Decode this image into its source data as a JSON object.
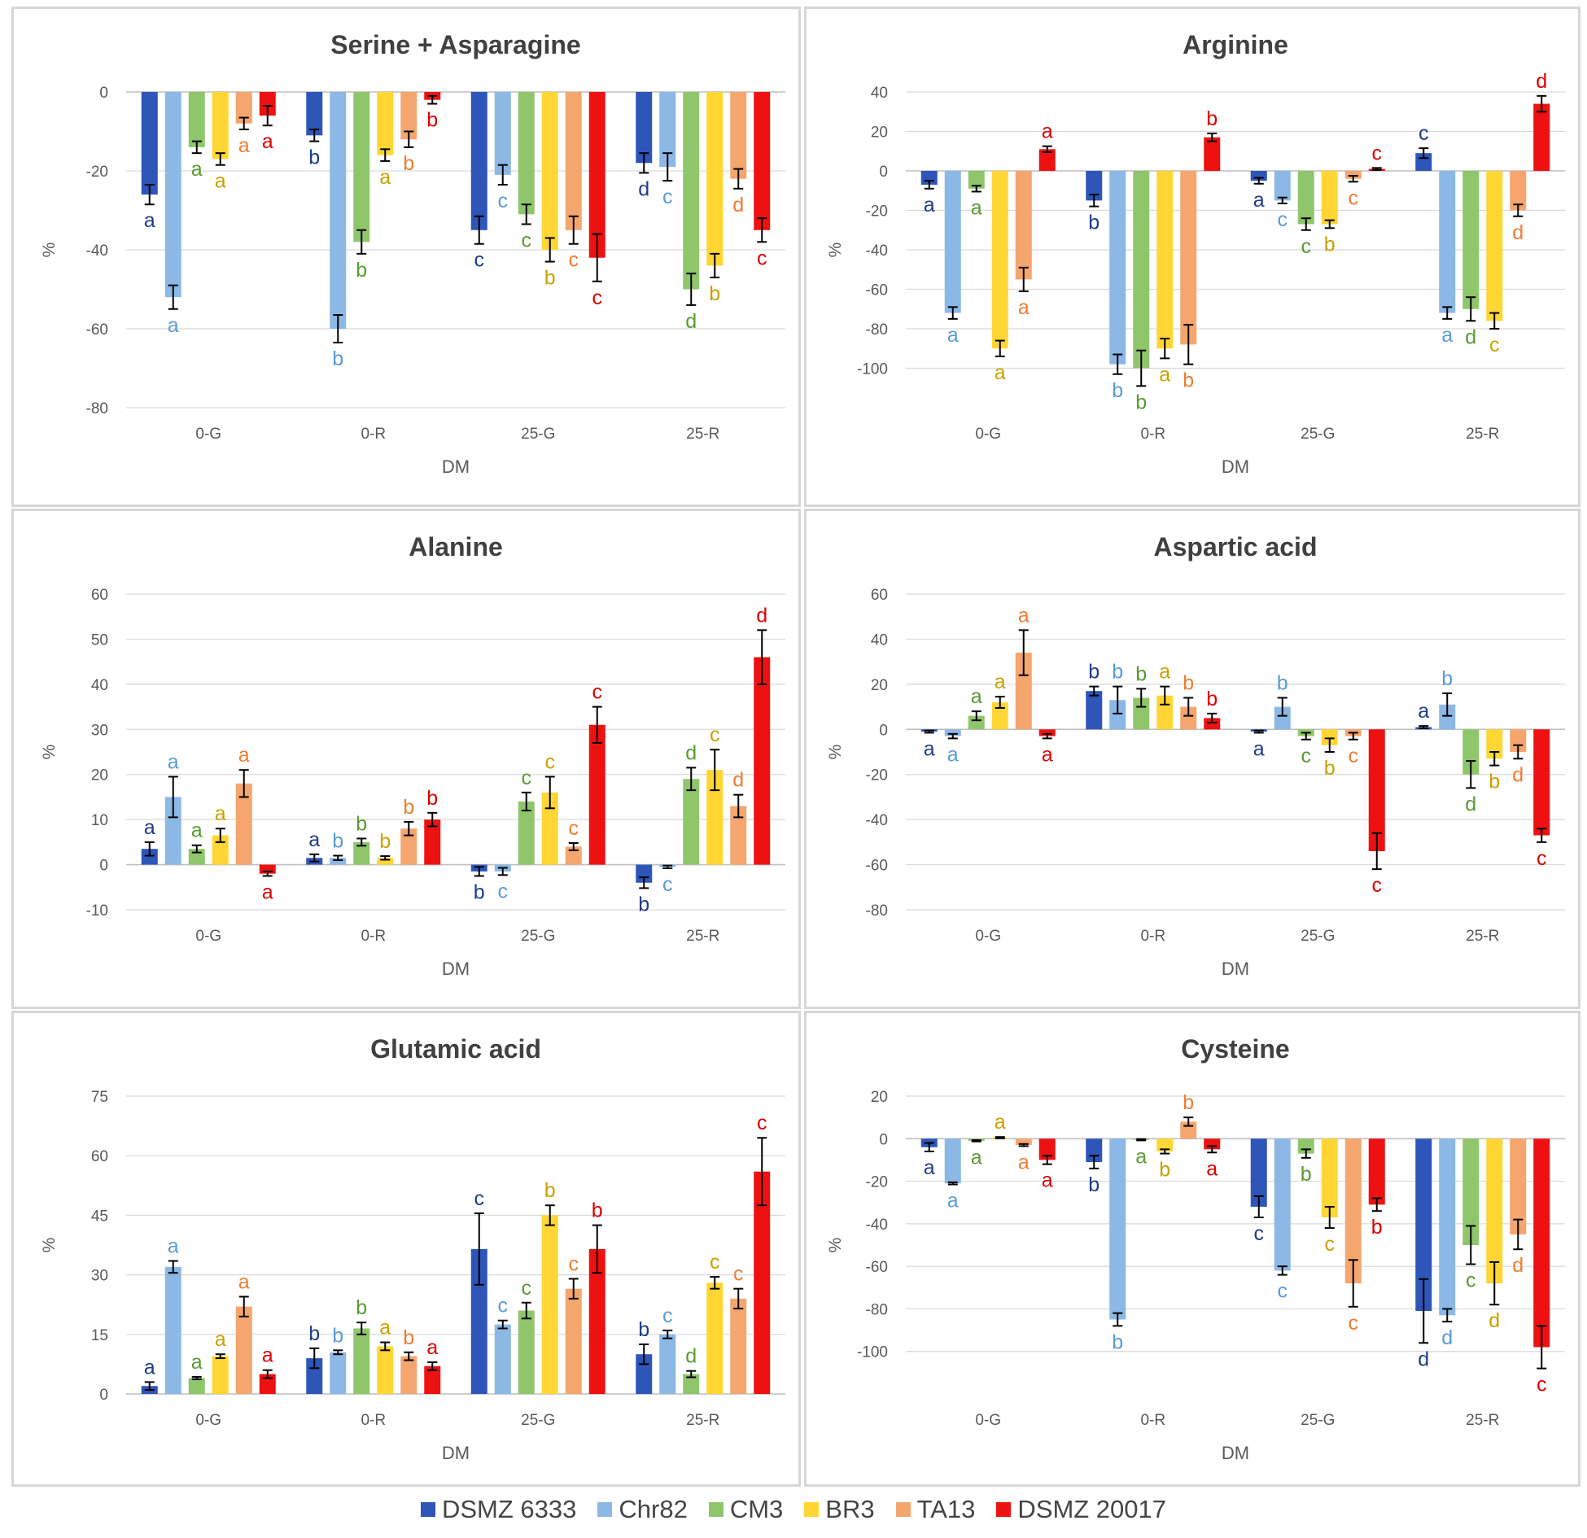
{
  "series": [
    {
      "name": "DSMZ 6333",
      "color": "#2e55b8",
      "letter_color": "#1f3b8a"
    },
    {
      "name": "Chr82",
      "color": "#8cb8e6",
      "letter_color": "#5b9bd5"
    },
    {
      "name": "CM3",
      "color": "#8fc66b",
      "letter_color": "#5a9a33"
    },
    {
      "name": "BR3",
      "color": "#ffd633",
      "letter_color": "#c9a100"
    },
    {
      "name": "TA13",
      "color": "#f4a66e",
      "letter_color": "#ed7d31"
    },
    {
      "name": "DSMZ 20017",
      "color": "#ee1111",
      "letter_color": "#dd0000"
    }
  ],
  "chart_data": [
    {
      "type": "bar",
      "title": "Serine + Asparagine",
      "xlabel": "DM",
      "ylabel": "%",
      "categories": [
        "0-G",
        "0-R",
        "25-G",
        "25-R"
      ],
      "ylim": [
        -80,
        0
      ],
      "yticks": [
        0,
        -20,
        -40,
        -60,
        -80
      ],
      "values": [
        [
          -26,
          -52,
          -14,
          -17,
          -8,
          -6
        ],
        [
          -11,
          -60,
          -38,
          -16,
          -12,
          -2
        ],
        [
          -35,
          -21,
          -31,
          -40,
          -35,
          -42
        ],
        [
          -18,
          -19,
          -50,
          -44,
          -22,
          -35
        ]
      ],
      "errors": [
        [
          2.5,
          3,
          1.5,
          1.5,
          1.5,
          2.5
        ],
        [
          1.5,
          3.5,
          3,
          1.5,
          2,
          1
        ],
        [
          3.5,
          2.5,
          2.5,
          3,
          3.5,
          6
        ],
        [
          2.5,
          3.5,
          4,
          3,
          2.5,
          3
        ]
      ],
      "letters": [
        [
          "a",
          "a",
          "a",
          "a",
          "a",
          "a"
        ],
        [
          "b",
          "b",
          "b",
          "a",
          "b",
          "b"
        ],
        [
          "c",
          "c",
          "c",
          "b",
          "c",
          "c"
        ],
        [
          "d",
          "c",
          "d",
          "b",
          "d",
          "c"
        ]
      ]
    },
    {
      "type": "bar",
      "title": "Arginine",
      "xlabel": "DM",
      "ylabel": "%",
      "categories": [
        "0-G",
        "0-R",
        "25-G",
        "25-R"
      ],
      "ylim": [
        -120,
        40
      ],
      "yticks": [
        40,
        20,
        0,
        -20,
        -40,
        -60,
        -80,
        -100
      ],
      "values": [
        [
          -7,
          -72,
          -9,
          -90,
          -55,
          11
        ],
        [
          -15,
          -98,
          -100,
          -90,
          -88,
          17
        ],
        [
          -5,
          -15,
          -27,
          -27,
          -4,
          1
        ],
        [
          9,
          -72,
          -70,
          -76,
          -20,
          34
        ]
      ],
      "errors": [
        [
          2,
          3,
          1.5,
          4,
          6,
          1.5
        ],
        [
          3,
          5,
          9,
          5,
          10,
          2
        ],
        [
          1.5,
          1.5,
          3,
          2,
          1.5,
          0.5
        ],
        [
          2.5,
          3,
          6,
          4,
          3,
          4
        ]
      ],
      "letters": [
        [
          "a",
          "a",
          "a",
          "a",
          "a",
          "a"
        ],
        [
          "b",
          "b",
          "b",
          "a",
          "b",
          "b"
        ],
        [
          "a",
          "c",
          "c",
          "b",
          "c",
          "c"
        ],
        [
          "c",
          "a",
          "d",
          "c",
          "d",
          "d"
        ]
      ]
    },
    {
      "type": "bar",
      "title": "Alanine",
      "xlabel": "DM",
      "ylabel": "%",
      "categories": [
        "0-G",
        "0-R",
        "25-G",
        "25-R"
      ],
      "ylim": [
        -10,
        60
      ],
      "yticks": [
        60,
        50,
        40,
        30,
        20,
        10,
        0,
        -10
      ],
      "values": [
        [
          3.5,
          15,
          3.5,
          6.5,
          18,
          -2
        ],
        [
          1.5,
          1.5,
          5,
          1.5,
          8,
          10
        ],
        [
          -1.5,
          -1.5,
          14,
          16,
          4,
          31
        ],
        [
          -4,
          -0.5,
          19,
          21,
          13,
          46
        ]
      ],
      "errors": [
        [
          1.5,
          4.5,
          0.8,
          1.5,
          3,
          0.5
        ],
        [
          0.8,
          0.5,
          0.8,
          0.4,
          1.5,
          1.5
        ],
        [
          1,
          0.8,
          2,
          3.5,
          0.8,
          4
        ],
        [
          1.2,
          0.3,
          2.5,
          4.5,
          2.5,
          6
        ]
      ],
      "letters": [
        [
          "a",
          "a",
          "a",
          "a",
          "a",
          "a"
        ],
        [
          "a",
          "b",
          "b",
          "b",
          "b",
          "b"
        ],
        [
          "b",
          "c",
          "c",
          "c",
          "c",
          "c"
        ],
        [
          "b",
          "c",
          "d",
          "c",
          "d",
          "d"
        ]
      ]
    },
    {
      "type": "bar",
      "title": "Aspartic acid",
      "xlabel": "DM",
      "ylabel": "%",
      "categories": [
        "0-G",
        "0-R",
        "25-G",
        "25-R"
      ],
      "ylim": [
        -80,
        60
      ],
      "yticks": [
        60,
        40,
        20,
        0,
        -20,
        -40,
        -60,
        -80
      ],
      "values": [
        [
          -1,
          -3,
          6,
          12,
          34,
          -3
        ],
        [
          17,
          13,
          14,
          15,
          10,
          5
        ],
        [
          -1,
          10,
          -3,
          -7,
          -3,
          -54
        ],
        [
          1,
          11,
          -20,
          -13,
          -10,
          -47
        ]
      ],
      "errors": [
        [
          0.5,
          1,
          2,
          2.5,
          10,
          1
        ],
        [
          2,
          6,
          4,
          4,
          4,
          2
        ],
        [
          0.5,
          4,
          1.5,
          3,
          1.5,
          8
        ],
        [
          0.5,
          5,
          6,
          3,
          3,
          3
        ]
      ],
      "letters": [
        [
          "a",
          "a",
          "a",
          "a",
          "a",
          "a"
        ],
        [
          "b",
          "b",
          "b",
          "a",
          "b",
          "b"
        ],
        [
          "a",
          "b",
          "c",
          "b",
          "c",
          "c"
        ],
        [
          "a",
          "b",
          "d",
          "b",
          "d",
          "c"
        ]
      ]
    },
    {
      "type": "bar",
      "title": "Glutamic acid",
      "xlabel": "DM",
      "ylabel": "%",
      "categories": [
        "0-G",
        "0-R",
        "25-G",
        "25-R"
      ],
      "ylim": [
        0,
        75
      ],
      "yticks": [
        75,
        60,
        45,
        30,
        15,
        0
      ],
      "values": [
        [
          2,
          32,
          4,
          9.5,
          22,
          5
        ],
        [
          9,
          10.5,
          16.5,
          12,
          9.5,
          7
        ],
        [
          36.5,
          17.5,
          21,
          45,
          26.5,
          36.5
        ],
        [
          10,
          15,
          5,
          28,
          24,
          56
        ]
      ],
      "errors": [
        [
          1,
          1.5,
          0.3,
          0.5,
          2.5,
          1
        ],
        [
          2.5,
          0.5,
          1.5,
          1,
          1,
          1
        ],
        [
          9,
          1,
          2,
          2.5,
          2.5,
          6
        ],
        [
          2.5,
          1,
          0.8,
          1.5,
          2.5,
          8.5
        ]
      ],
      "letters": [
        [
          "a",
          "a",
          "a",
          "a",
          "a",
          "a"
        ],
        [
          "b",
          "b",
          "b",
          "a",
          "b",
          "a"
        ],
        [
          "c",
          "c",
          "c",
          "b",
          "c",
          "b"
        ],
        [
          "b",
          "c",
          "d",
          "c",
          "c",
          "c"
        ]
      ]
    },
    {
      "type": "bar",
      "title": "Cysteine",
      "xlabel": "DM",
      "ylabel": "%",
      "categories": [
        "0-G",
        "0-R",
        "25-G",
        "25-R"
      ],
      "ylim": [
        -120,
        20
      ],
      "yticks": [
        20,
        0,
        -20,
        -40,
        -60,
        -80,
        -100
      ],
      "values": [
        [
          -4,
          -21,
          -1,
          0.5,
          -3,
          -10
        ],
        [
          -11,
          -85,
          -0.5,
          -6,
          8,
          -5
        ],
        [
          -32,
          -62,
          -7,
          -37,
          -68,
          -31
        ],
        [
          -81,
          -83,
          -50,
          -68,
          -45,
          -98
        ]
      ],
      "errors": [
        [
          2,
          0.5,
          0.3,
          0.3,
          0.5,
          2
        ],
        [
          3,
          3,
          0.3,
          1,
          2,
          1.5
        ],
        [
          5,
          2,
          2,
          5,
          11,
          3
        ],
        [
          15,
          3,
          9,
          10,
          7,
          10
        ]
      ],
      "letters": [
        [
          "a",
          "a",
          "a",
          "a",
          "a",
          "a"
        ],
        [
          "b",
          "b",
          "a",
          "b",
          "b",
          "a"
        ],
        [
          "c",
          "c",
          "b",
          "c",
          "c",
          "b"
        ],
        [
          "d",
          "d",
          "c",
          "d",
          "d",
          "c"
        ]
      ]
    }
  ]
}
